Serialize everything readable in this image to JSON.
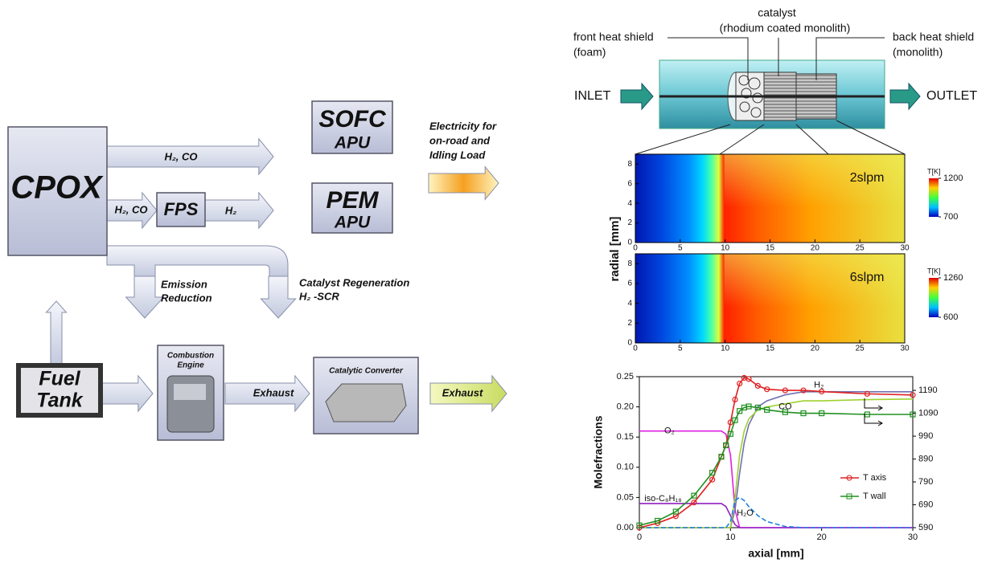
{
  "diagram": {
    "cpox": "CPOX",
    "sofc": {
      "name": "SOFC",
      "sub": "APU"
    },
    "pem": {
      "name": "PEM",
      "sub": "APU"
    },
    "fps": "FPS",
    "fuel_tank": [
      "Fuel",
      "Tank"
    ],
    "engine": [
      "Combustion",
      "Engine"
    ],
    "converter": "Catalytic Converter",
    "flows": {
      "h2co_top": "H₂, CO",
      "h2co_mid": "H₂, CO",
      "h2": "H₂",
      "electricity": [
        "Electricity for",
        "on-road and",
        "Idling Load"
      ],
      "emission": [
        "Emission",
        "Reduction"
      ],
      "regen": [
        "Catalyst Regeneration",
        "H₂ -SCR"
      ],
      "exhaust1": "Exhaust",
      "exhaust2": "Exhaust"
    }
  },
  "reactor": {
    "catalyst": [
      "catalyst",
      "(rhodium coated monolith)"
    ],
    "front": [
      "front heat shield",
      "(foam)"
    ],
    "back": [
      "back heat shield",
      "(monolith)"
    ],
    "inlet": "INLET",
    "outlet": "OUTLET"
  },
  "chart_data": [
    {
      "type": "heatmap",
      "annotation": "2slpm",
      "ylabel": "radial [mm]",
      "xlim": [
        0,
        30
      ],
      "xticks": [
        0,
        5,
        10,
        15,
        20,
        25,
        30
      ],
      "ylim": [
        0,
        9
      ],
      "yticks": [
        0,
        2,
        4,
        6,
        8
      ],
      "colorbar": {
        "title": "T[K]",
        "lim": [
          700,
          1200
        ],
        "ticks": [
          700,
          1200
        ]
      }
    },
    {
      "type": "heatmap",
      "annotation": "6slpm",
      "xlim": [
        0,
        30
      ],
      "xticks": [
        0,
        5,
        10,
        15,
        20,
        25,
        30
      ],
      "ylim": [
        0,
        9
      ],
      "yticks": [
        0,
        2,
        4,
        6,
        8
      ],
      "colorbar": {
        "title": "T[K]",
        "lim": [
          600,
          1260
        ],
        "ticks": [
          600,
          1260
        ]
      }
    },
    {
      "type": "line",
      "xlabel": "axial [mm]",
      "ylabel": "Molefractions",
      "xlim": [
        0,
        30
      ],
      "xticks": [
        0,
        10,
        20,
        30
      ],
      "ylim": [
        0,
        0.25
      ],
      "yticks": [
        {
          "value": 0,
          "label": "0.00"
        },
        {
          "value": 0.05,
          "label": "0.05"
        },
        {
          "value": 0.1,
          "label": "0.10"
        },
        {
          "value": 0.15,
          "label": "0.15"
        },
        {
          "value": 0.2,
          "label": "0.20"
        },
        {
          "value": 0.25,
          "label": "0.25"
        }
      ],
      "y2lim": [
        590,
        1250
      ],
      "y2ticks": [
        590,
        690,
        790,
        890,
        990,
        1090,
        1190
      ],
      "legend": "lower right",
      "x": [
        0,
        2,
        4,
        6,
        8,
        9,
        9.5,
        10,
        10.5,
        11,
        11.5,
        12,
        13,
        14,
        16,
        18,
        20,
        25,
        30
      ],
      "series": [
        {
          "name": "O₂",
          "color": "#e020e0",
          "values": [
            0.16,
            0.16,
            0.16,
            0.16,
            0.16,
            0.16,
            0.155,
            0.12,
            0.03,
            0,
            0,
            0,
            0,
            0,
            0,
            0,
            0,
            0,
            0
          ]
        },
        {
          "name": "iso-C₈H₁₈",
          "color": "#9020c0",
          "values": [
            0.04,
            0.04,
            0.04,
            0.04,
            0.04,
            0.04,
            0.035,
            0.02,
            0.005,
            0,
            0,
            0,
            0,
            0,
            0,
            0,
            0,
            0,
            0
          ]
        },
        {
          "name": "H₂",
          "color": "#7070b0",
          "values": [
            0,
            0,
            0,
            0,
            0,
            0,
            0,
            0,
            0.03,
            0.09,
            0.14,
            0.17,
            0.2,
            0.21,
            0.22,
            0.225,
            0.225,
            0.225,
            0.225
          ]
        },
        {
          "name": "CO",
          "color": "#a0d030",
          "values": [
            0,
            0,
            0,
            0,
            0,
            0,
            0,
            0,
            0.05,
            0.12,
            0.16,
            0.18,
            0.195,
            0.2,
            0.205,
            0.21,
            0.21,
            0.212,
            0.213
          ]
        },
        {
          "name": "H₂O",
          "color": "#2080e0",
          "values": [
            0,
            0,
            0,
            0,
            0,
            0,
            0,
            0.01,
            0.045,
            0.05,
            0.045,
            0.035,
            0.02,
            0.01,
            0.002,
            0,
            0,
            0,
            0
          ]
        },
        {
          "name": "T axis",
          "color": "#e02020",
          "axis": "y2",
          "values": [
            590,
            610,
            640,
            700,
            800,
            900,
            950,
            1050,
            1150,
            1220,
            1245,
            1240,
            1210,
            1195,
            1190,
            1190,
            1185,
            1175,
            1170
          ]
        },
        {
          "name": "T wall",
          "color": "#209020",
          "axis": "y2",
          "values": [
            600,
            620,
            660,
            730,
            830,
            900,
            950,
            1000,
            1060,
            1100,
            1115,
            1120,
            1115,
            1105,
            1095,
            1090,
            1090,
            1085,
            1085
          ]
        }
      ]
    }
  ]
}
